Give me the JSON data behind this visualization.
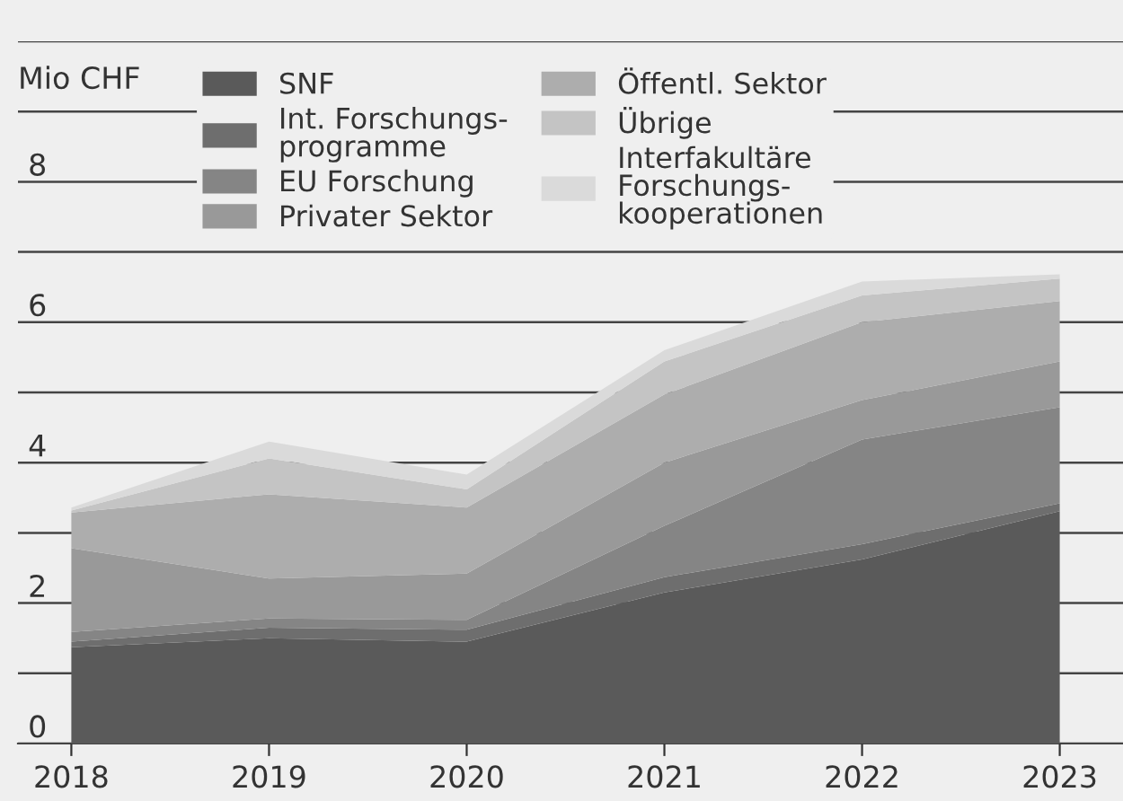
{
  "chart_data": {
    "type": "area",
    "stacked": true,
    "ylabel": "Mio CHF",
    "x": [
      2018,
      2019,
      2020,
      2021,
      2022,
      2023
    ],
    "series": [
      {
        "name": "SNF",
        "color": "#5a5a5a",
        "values": [
          1.37,
          1.5,
          1.45,
          2.15,
          2.62,
          3.31
        ]
      },
      {
        "name": "Int. Forschungs-\nprogramme",
        "color": "#6e6e6e",
        "values": [
          0.08,
          0.15,
          0.17,
          0.22,
          0.22,
          0.11
        ]
      },
      {
        "name": "EU Forschung",
        "color": "#858585",
        "values": [
          0.14,
          0.13,
          0.14,
          0.73,
          1.49,
          1.37
        ]
      },
      {
        "name": "Privater Sektor",
        "color": "#999999",
        "values": [
          1.19,
          0.57,
          0.66,
          0.9,
          0.56,
          0.65
        ]
      },
      {
        "name": "Öffentl. Sektor",
        "color": "#adadad",
        "values": [
          0.51,
          1.2,
          0.94,
          0.97,
          1.11,
          0.86
        ]
      },
      {
        "name": "Übrige",
        "color": "#c4c4c4",
        "values": [
          0.03,
          0.51,
          0.26,
          0.47,
          0.38,
          0.32
        ]
      },
      {
        "name": "Interfakultäre\nForschungs-\nkooperationen",
        "color": "#dadada",
        "values": [
          0.04,
          0.24,
          0.21,
          0.16,
          0.2,
          0.06
        ]
      }
    ],
    "xlim": [
      2017.73,
      2023.32
    ],
    "xticks": [
      2018,
      2019,
      2020,
      2021,
      2022,
      2023
    ],
    "ylim": [
      0,
      10
    ],
    "yticks": [
      0,
      {
        "value": 1,
        "label": null
      },
      2,
      {
        "value": 3,
        "label": null
      },
      4,
      {
        "value": 5,
        "label": null
      },
      6,
      {
        "value": 7,
        "label": null
      },
      8,
      {
        "value": 9,
        "label": null
      },
      {
        "value": 10,
        "label": null
      }
    ],
    "grid": "y",
    "legend": "top left"
  }
}
